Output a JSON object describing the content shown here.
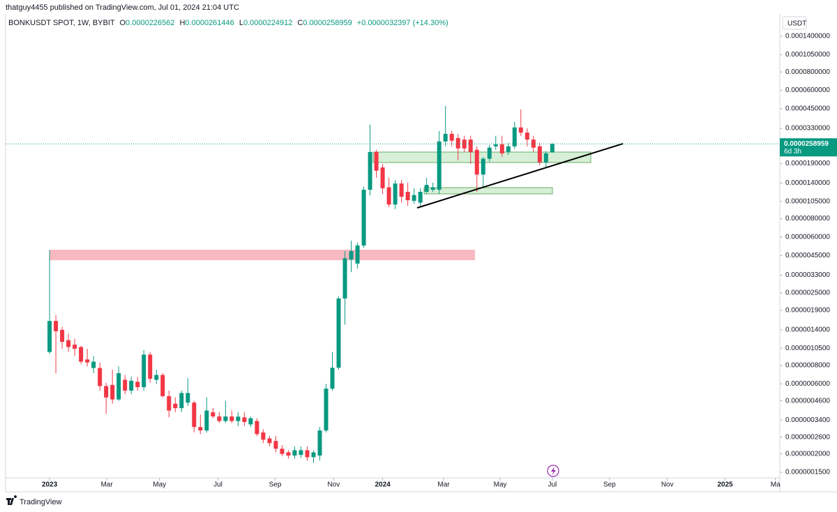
{
  "header": {
    "author_line": "thatguy4455 published on TradingView.com, Jul 01, 2024 21:04 UTC",
    "symbol": "BONKUSDT SPOT, 1W, BYBIT",
    "ohlc": [
      {
        "key": "O",
        "value": "0.0000226562"
      },
      {
        "key": "H",
        "value": "0.0000261446"
      },
      {
        "key": "L",
        "value": "0.0000224912"
      },
      {
        "key": "C",
        "value": "0.0000258959"
      }
    ],
    "change": "+0.0000032397 (+14.30%)",
    "currency": "USDT"
  },
  "footer": {
    "brand": "TradingView"
  },
  "chart_data": {
    "type": "candlestick",
    "log_scale": true,
    "grid": false,
    "up_color": "#089981",
    "down_color": "#f23645",
    "last_price_label": "0.0000258959",
    "countdown": "6d 3h",
    "categories": [
      null,
      null,
      null,
      null,
      null,
      null,
      null,
      null,
      null,
      null,
      null,
      null,
      null,
      null,
      null,
      null,
      null,
      null,
      null,
      null,
      null,
      null,
      null,
      null,
      null,
      null,
      null,
      null,
      null,
      null,
      null,
      null,
      null,
      null,
      null,
      null,
      null,
      null,
      null,
      null,
      null,
      null,
      null,
      null,
      null,
      null,
      null,
      null,
      null,
      null,
      null,
      null,
      null,
      null,
      null,
      null,
      null,
      null,
      null,
      null,
      null,
      null,
      null,
      null,
      null,
      null,
      null,
      null,
      null,
      null,
      null,
      null,
      null,
      null,
      null,
      null,
      null,
      null,
      null,
      null,
      null
    ],
    "open": [
      9.9e-07,
      1.61e-06,
      1.4e-06,
      1.19e-06,
      1.11e-06,
      1.07e-06,
      8.8e-07,
      7.7e-07,
      7.7e-07,
      5.8e-07,
      5.9e-07,
      4.7e-07,
      6.4e-07,
      5.4e-07,
      6.2e-07,
      5.7e-07,
      9.5e-07,
      6.4e-07,
      6.9e-07,
      4.95e-07,
      4.4e-07,
      4.1e-07,
      4.47e-07,
      4.47e-07,
      3.05e-07,
      2.89e-07,
      3.85e-07,
      3.6e-07,
      3.35e-07,
      3.6e-07,
      3.35e-07,
      3.55e-07,
      3.18e-07,
      3.35e-07,
      2.8e-07,
      2.55e-07,
      2.45e-07,
      2.17e-07,
      2.05e-07,
      1.95e-07,
      1.97e-07,
      2.12e-07,
      1.9e-07,
      1.95e-07,
      2.89e-07,
      5.57e-07,
      7.73e-07,
      2.29e-06,
      4.22e-06,
      3.96e-06,
      5.26e-06,
      1.26e-05,
      2.28e-05,
      1.79e-05,
      1.31e-05,
      1e-05,
      1.39e-05,
      1.22e-05,
      1.06e-05,
      1.03e-05,
      1.22e-05,
      1.26e-05,
      1.26e-05,
      2.69e-05,
      3.03e-05,
      2.84e-05,
      2.77e-05,
      2.77e-05,
      2.36e-05,
      1.6e-05,
      2.05e-05,
      2.49e-05,
      2.57e-05,
      2.28e-05,
      2.49e-05,
      3.35e-05,
      3.09e-05,
      2.77e-05,
      2.49e-05,
      1.94e-05,
      2.26562e-05
    ],
    "high": [
      4.9e-06,
      1.76e-06,
      1.47e-06,
      1.32e-06,
      1.22e-06,
      1.09e-06,
      1.04e-06,
      9.3e-07,
      8.4e-07,
      6.1e-07,
      7.5e-07,
      7.9e-07,
      6.9e-07,
      6.7e-07,
      6.7e-07,
      1.02e-06,
      9.9e-07,
      7.5e-07,
      7.1e-07,
      5.4e-07,
      4.85e-07,
      5.4e-07,
      6.56e-07,
      4.6e-07,
      3.7e-07,
      4.85e-07,
      4.1e-07,
      3.85e-07,
      4.6e-07,
      3.95e-07,
      3.85e-07,
      3.85e-07,
      3.6e-07,
      3.5e-07,
      2.95e-07,
      2.65e-07,
      2.65e-07,
      2.3e-07,
      2.12e-07,
      2.25e-07,
      2.25e-07,
      2.25e-07,
      2.12e-07,
      3.05e-07,
      6e-07,
      9.9e-07,
      2.36e-06,
      4.82e-06,
      5.67e-06,
      5.5e-06,
      1.32e-05,
      3.5e-05,
      2.36e-05,
      1.89e-05,
      1.52e-05,
      1.47e-05,
      1.47e-05,
      1.41e-05,
      1.29e-05,
      1.29e-05,
      1.52e-05,
      1.41e-05,
      3.17e-05,
      4.69e-05,
      3.17e-05,
      3.03e-05,
      2.94e-05,
      2.94e-05,
      2.49e-05,
      2.11e-05,
      2.55e-05,
      2.94e-05,
      2.94e-05,
      2.63e-05,
      3.65e-05,
      4.44e-05,
      3.3e-05,
      2.94e-05,
      2.63e-05,
      2.31e-05,
      2.61446e-05
    ],
    "low": [
      9.6e-07,
      7.1e-07,
      1.04e-06,
      9.9e-07,
      9.3e-07,
      8.2e-07,
      7.9e-07,
      7.1e-07,
      5.4e-07,
      3.75e-07,
      4.4e-07,
      4.6e-07,
      5.1e-07,
      5.1e-07,
      5.4e-07,
      5.4e-07,
      6.1e-07,
      6e-07,
      4.85e-07,
      3.55e-07,
      3.85e-07,
      3.85e-07,
      4.24e-07,
      2.8e-07,
      2.73e-07,
      2.8e-07,
      3.5e-07,
      3.25e-07,
      3.25e-07,
      3.25e-07,
      3.1e-07,
      3.1e-07,
      3.05e-07,
      2.65e-07,
      2.37e-07,
      2.25e-07,
      2.05e-07,
      1.93e-07,
      1.86e-07,
      1.86e-07,
      1.88e-07,
      1.8e-07,
      1.74e-07,
      1.8e-07,
      2.8e-07,
      5.4e-07,
      7.5e-07,
      1.52e-06,
      3.46e-06,
      3.66e-06,
      5.08e-06,
      1.155e-05,
      1.52e-05,
      1.18e-05,
      9.59e-06,
      9.3e-06,
      1.03e-05,
      9.8e-06,
      1.01e-05,
      9.8e-06,
      1.18e-05,
      1.22e-05,
      1.18e-05,
      2.49e-05,
      2.49e-05,
      2e-05,
      2.28e-05,
      1.89e-05,
      1.22e-05,
      1.31e-05,
      1.96e-05,
      2.36e-05,
      2.11e-05,
      2.18e-05,
      2.39e-05,
      2.94e-05,
      2.49e-05,
      2.28e-05,
      1.85e-05,
      1.79e-05,
      2.24912e-05
    ],
    "close": [
      1.61e-06,
      1.37e-06,
      1.16e-06,
      1.07e-06,
      1.04e-06,
      8.5e-07,
      8.4e-07,
      8.5e-07,
      5.8e-07,
      4.85e-07,
      4.7e-07,
      7.1e-07,
      5.4e-07,
      6.3e-07,
      5.7e-07,
      9.5e-07,
      6.5e-07,
      6.9e-07,
      4.95e-07,
      3.95e-07,
      4.1e-07,
      5.2e-07,
      5.2e-07,
      3.05e-07,
      2.89e-07,
      3.95e-07,
      3.6e-07,
      3.35e-07,
      3.6e-07,
      3.35e-07,
      3.59e-07,
      3.3e-07,
      3.5e-07,
      2.73e-07,
      2.5e-07,
      2.37e-07,
      2.17e-07,
      2e-07,
      1.95e-07,
      2.12e-07,
      2.12e-07,
      1.9e-07,
      2.05e-07,
      2.89e-07,
      5.57e-07,
      7.73e-07,
      2.29e-06,
      4.3e-06,
      4.82e-06,
      5.26e-06,
      1.26e-05,
      2.28e-05,
      1.7e-05,
      1.29e-05,
      1e-05,
      1.39e-05,
      1.13e-05,
      1.07e-05,
      1.16e-05,
      1.22e-05,
      1.36e-05,
      1.31e-05,
      2.69e-05,
      3.03e-05,
      2.72e-05,
      2.41e-05,
      2.41e-05,
      2.28e-05,
      1.6e-05,
      2.05e-05,
      2.44e-05,
      2.57e-05,
      2.23e-05,
      2.49e-05,
      3.35e-05,
      3.09e-05,
      2.77e-05,
      2.44e-05,
      1.94e-05,
      2.23e-05,
      2.58959e-05
    ],
    "ylim": [
      1.375e-07,
      0.0001987
    ],
    "yticks": [
      {
        "value": 0.00014,
        "label": "0.0001400000"
      },
      {
        "value": 0.000105,
        "label": "0.0001050000"
      },
      {
        "value": 8e-05,
        "label": "0.0000800000"
      },
      {
        "value": 6e-05,
        "label": "0.0000600000"
      },
      {
        "value": 4.5e-05,
        "label": "0.0000450000"
      },
      {
        "value": 3.3e-05,
        "label": "0.0000330000"
      },
      {
        "value": 1.9e-05,
        "label": "0.0000190000"
      },
      {
        "value": 1.4e-05,
        "label": "0.0000140000"
      },
      {
        "value": 1.05e-05,
        "label": "0.0000105000"
      },
      {
        "value": 8e-06,
        "label": "0.0000080000"
      },
      {
        "value": 6e-06,
        "label": "0.0000060000"
      },
      {
        "value": 4.5e-06,
        "label": "0.0000045000"
      },
      {
        "value": 3.3e-06,
        "label": "0.0000033000"
      },
      {
        "value": 2.5e-06,
        "label": "0.0000025000"
      },
      {
        "value": 1.9e-06,
        "label": "0.0000019000"
      },
      {
        "value": 1.4e-06,
        "label": "0.0000014000"
      },
      {
        "value": 1.05e-06,
        "label": "0.0000010500"
      },
      {
        "value": 8e-07,
        "label": "0.0000008000"
      },
      {
        "value": 6e-07,
        "label": "0.0000006000"
      },
      {
        "value": 4.6e-07,
        "label": "0.0000004600"
      },
      {
        "value": 3.4e-07,
        "label": "0.0000003400"
      },
      {
        "value": 2.6e-07,
        "label": "0.0000002600"
      },
      {
        "value": 2e-07,
        "label": "0.0000002000"
      },
      {
        "value": 1.5e-07,
        "label": "0.0000001500"
      }
    ],
    "xlim": [
      -7,
      116.2
    ],
    "xticks": [
      {
        "value": 0,
        "label": "2023"
      },
      {
        "value": 9.1,
        "label": "Mar"
      },
      {
        "value": 17.5,
        "label": "May"
      },
      {
        "value": 26.8,
        "label": "Jul"
      },
      {
        "value": 35.9,
        "label": "Sep"
      },
      {
        "value": 45.2,
        "label": "Nov"
      },
      {
        "value": 53,
        "label": "2024"
      },
      {
        "value": 62.7,
        "label": "Mar"
      },
      {
        "value": 71.7,
        "label": "May"
      },
      {
        "value": 80,
        "label": "Jul"
      },
      {
        "value": 89.1,
        "label": "Sep"
      },
      {
        "value": 98.3,
        "label": "Nov"
      },
      {
        "value": 107.5,
        "label": "2025"
      },
      {
        "value": 115.5,
        "label": "Ma"
      }
    ]
  }
}
